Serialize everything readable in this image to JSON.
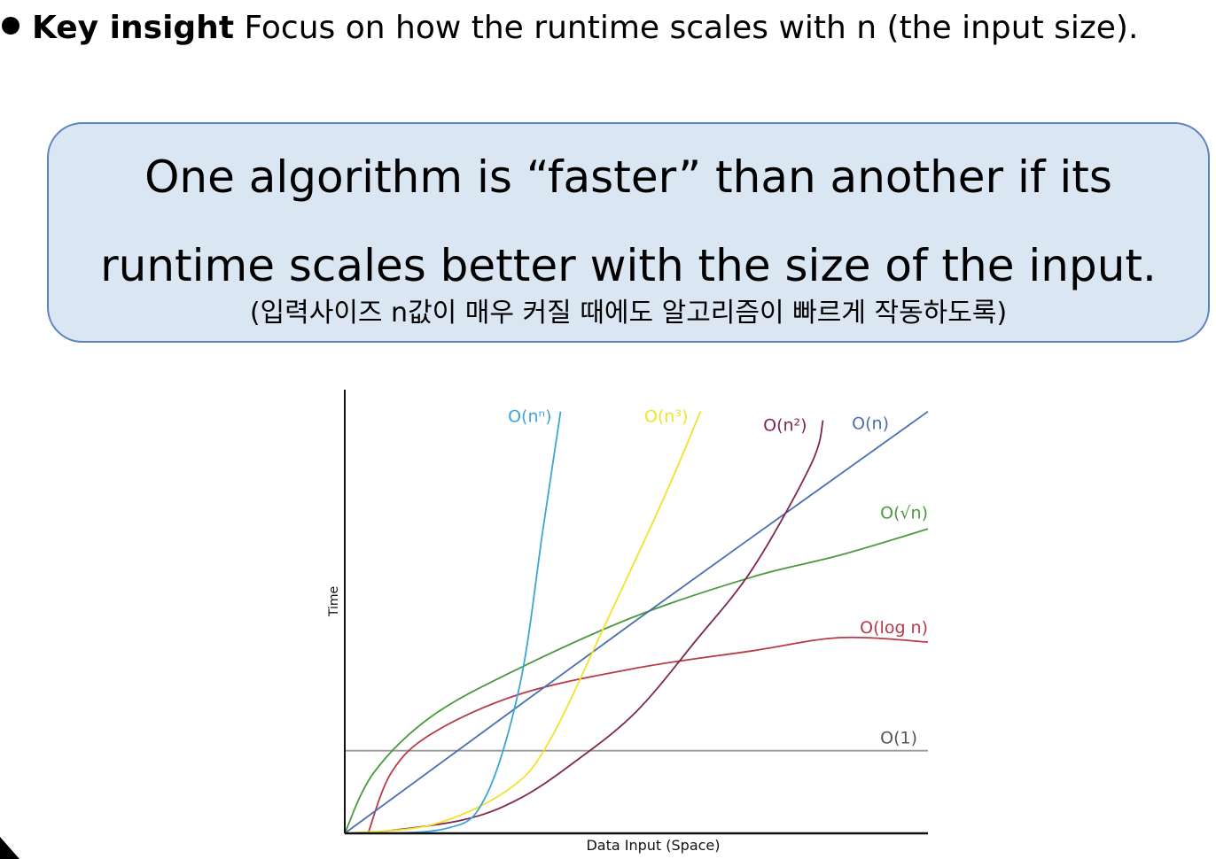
{
  "bullet": {
    "bold": "Key insight",
    "text": " Focus on how the runtime scales with n (the input size)."
  },
  "callout": {
    "line1": "One algorithm is “faster” than another if its",
    "line2": "runtime scales better with the size of the input.",
    "subtitle": "(입력사이즈 n값이 매우 커질 때에도 알고리즘이 빠르게 작동하도록)"
  },
  "chart_data": {
    "type": "line",
    "title": "",
    "xlabel": "Data Input (Space)",
    "ylabel": "Time",
    "xlim": [
      0,
      1
    ],
    "ylim": [
      0,
      1
    ],
    "grid": false,
    "legend": "inline labels at curve ends",
    "series": [
      {
        "name": "O(1)",
        "color": "#999999",
        "points": [
          [
            0,
            0.19
          ],
          [
            1,
            0.19
          ]
        ]
      },
      {
        "name": "O(log n)",
        "color": "#b83a46",
        "points": [
          [
            0.04,
            0.0
          ],
          [
            0.08,
            0.14
          ],
          [
            0.15,
            0.23
          ],
          [
            0.3,
            0.32
          ],
          [
            0.5,
            0.38
          ],
          [
            0.7,
            0.42
          ],
          [
            0.85,
            0.45
          ],
          [
            1.0,
            0.44
          ]
        ]
      },
      {
        "name": "O(√n)",
        "color": "#4a9a3c",
        "points": [
          [
            0,
            0.0
          ],
          [
            0.05,
            0.14
          ],
          [
            0.15,
            0.27
          ],
          [
            0.3,
            0.38
          ],
          [
            0.5,
            0.5
          ],
          [
            0.7,
            0.59
          ],
          [
            0.85,
            0.64
          ],
          [
            1.0,
            0.7
          ]
        ]
      },
      {
        "name": "O(n)",
        "color": "#4b6fb0",
        "points": [
          [
            0,
            0.0
          ],
          [
            0.5,
            0.49
          ],
          [
            1.0,
            0.97
          ]
        ]
      },
      {
        "name": "O(n²)",
        "color": "#7d2752",
        "points": [
          [
            0.04,
            0.0
          ],
          [
            0.2,
            0.03
          ],
          [
            0.3,
            0.08
          ],
          [
            0.4,
            0.17
          ],
          [
            0.5,
            0.28
          ],
          [
            0.6,
            0.44
          ],
          [
            0.7,
            0.61
          ],
          [
            0.8,
            0.85
          ],
          [
            0.82,
            0.95
          ]
        ]
      },
      {
        "name": "O(n³)",
        "color": "#f2e22a",
        "points": [
          [
            0,
            0.0
          ],
          [
            0.15,
            0.02
          ],
          [
            0.28,
            0.1
          ],
          [
            0.35,
            0.21
          ],
          [
            0.45,
            0.49
          ],
          [
            0.55,
            0.78
          ],
          [
            0.61,
            0.97
          ]
        ]
      },
      {
        "name": "O(nⁿ)",
        "color": "#3ba6d6",
        "points": [
          [
            0,
            0.0
          ],
          [
            0.17,
            0.01
          ],
          [
            0.24,
            0.08
          ],
          [
            0.3,
            0.34
          ],
          [
            0.34,
            0.7
          ],
          [
            0.37,
            0.97
          ]
        ]
      }
    ]
  }
}
